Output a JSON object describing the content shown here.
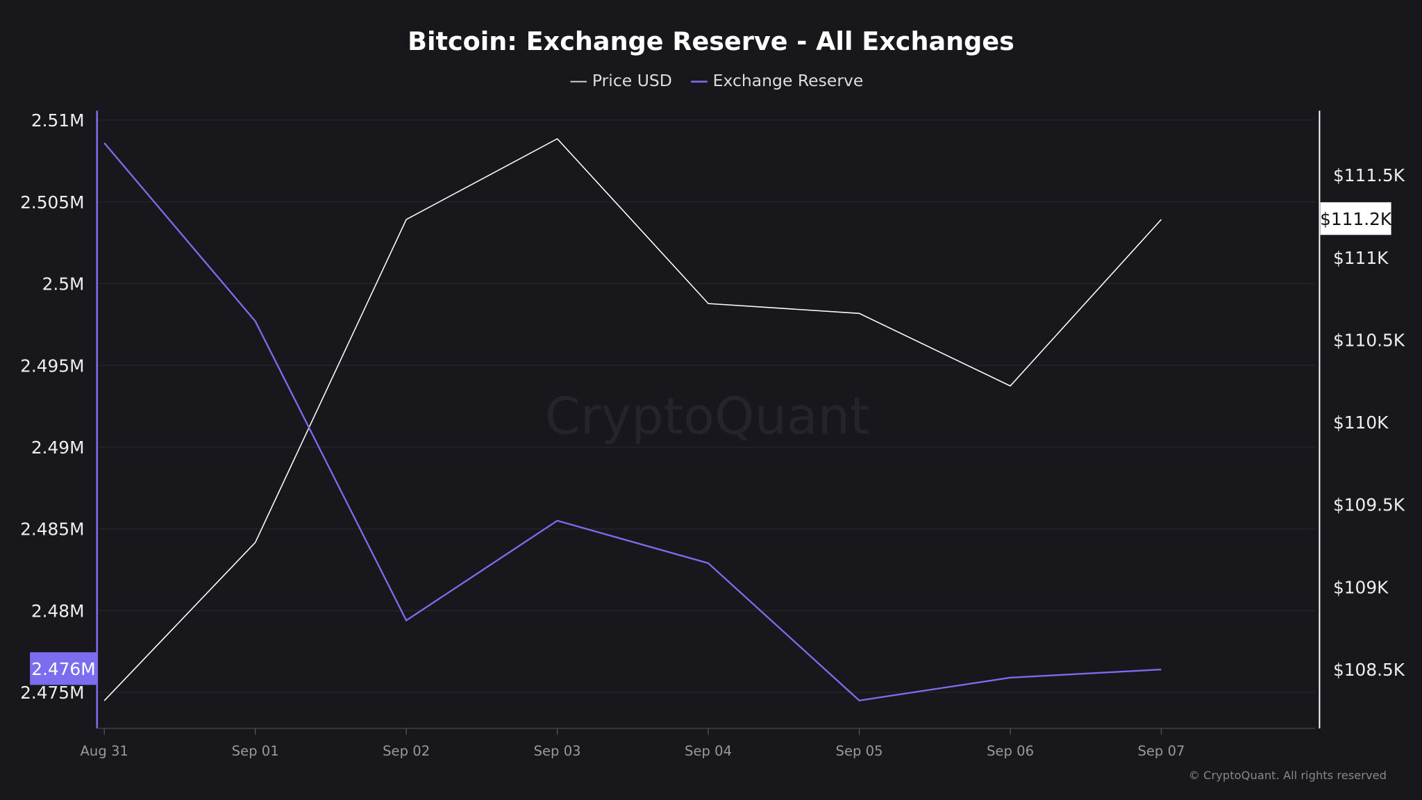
{
  "chart_data": {
    "type": "line",
    "title": "Bitcoin: Exchange Reserve - All Exchanges",
    "categories": [
      "Aug 31",
      "Sep 01",
      "Sep 02",
      "Sep 03",
      "Sep 04",
      "Sep 05",
      "Sep 06",
      "Sep 07"
    ],
    "series": [
      {
        "name": "Price USD",
        "axis": "right",
        "color": "#ffffff",
        "values": [
          108310,
          109270,
          111230,
          111720,
          110720,
          110660,
          110220,
          111230
        ]
      },
      {
        "name": "Exchange Reserve",
        "axis": "left",
        "color": "#7b6cf0",
        "values": [
          2.5086,
          2.4977,
          2.4794,
          2.4855,
          2.4829,
          2.4745,
          2.4759,
          2.4764
        ]
      }
    ],
    "left_axis": {
      "ticks": [
        "2.51M",
        "2.505M",
        "2.5M",
        "2.495M",
        "2.49M",
        "2.485M",
        "2.48M",
        "2.475M"
      ],
      "tick_values": [
        2.51,
        2.505,
        2.5,
        2.495,
        2.49,
        2.485,
        2.48,
        2.475
      ],
      "range": [
        2.4728,
        2.5103
      ],
      "current_label": "2.476M",
      "current_value": 2.4764
    },
    "right_axis": {
      "ticks": [
        "$111.5K",
        "$111K",
        "$110.5K",
        "$110K",
        "$109.5K",
        "$109K",
        "$108.5K"
      ],
      "tick_values": [
        111500,
        111000,
        110500,
        110000,
        109500,
        109000,
        108500
      ],
      "range": [
        108142,
        111863
      ],
      "current_label": "$111.2K",
      "current_value": 111230
    },
    "grid": true,
    "legend_position": "top-center",
    "watermark": "CryptoQuant",
    "copyright": "© CryptoQuant. All rights reserved"
  }
}
